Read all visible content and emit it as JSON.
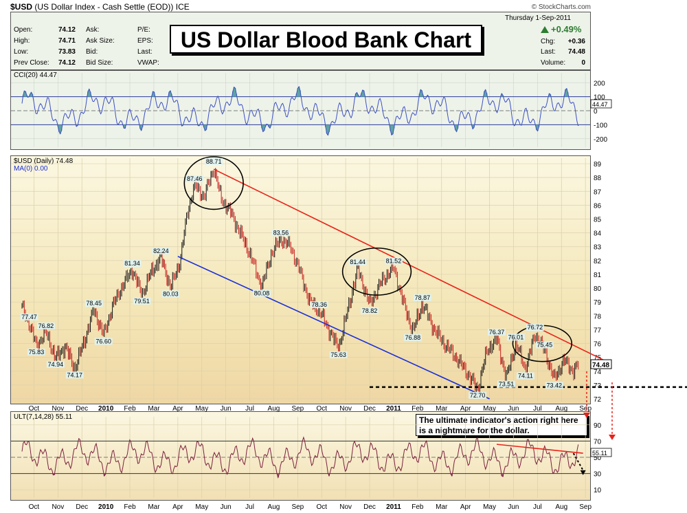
{
  "header": {
    "symbol": "$USD",
    "description": "(US Dollar Index - Cash Settle (EOD))",
    "exchange": "ICE",
    "source": "© StockCharts.com"
  },
  "quote": {
    "rows_left": [
      {
        "label": "Open:",
        "value": "74.12"
      },
      {
        "label": "High:",
        "value": "74.71"
      },
      {
        "label": "Low:",
        "value": "73.83"
      },
      {
        "label": "Prev Close:",
        "value": "74.12"
      }
    ],
    "rows_mid": [
      "Ask:",
      "Ask Size:",
      "Bid:",
      "Bid Size:"
    ],
    "rows_mid2": [
      "P/E:",
      "EPS:",
      "Last:",
      "VWAP:"
    ],
    "date": "Thursday  1-Sep-2011",
    "change_pct": "+0.49%",
    "chg_label": "Chg:",
    "chg_value": "+0.36",
    "last_label": "Last:",
    "last_value": "74.48",
    "volume_label": "Volume:",
    "volume_value": "0"
  },
  "banner": "US Dollar Blood Bank Chart",
  "cci": {
    "title": "CCI(20) 44.47",
    "current_label": "44.47",
    "axis": [
      "200",
      "100",
      "0",
      "-100",
      "-200"
    ],
    "axis_values": [
      200,
      100,
      0,
      -100,
      -200
    ],
    "range": [
      -260,
      270
    ],
    "line_color": "#3b4fc4",
    "fill_color": "#5fa3a3"
  },
  "main": {
    "title": "$USD (Daily) 74.48",
    "ma_label": "MA(0) 0.00",
    "current_label": "74.48",
    "axis": [
      "89",
      "88",
      "87",
      "86",
      "85",
      "84",
      "83",
      "82",
      "81",
      "80",
      "79",
      "78",
      "77",
      "76",
      "75",
      "74",
      "73",
      "72"
    ],
    "axis_values": [
      89,
      88,
      87,
      86,
      85,
      84,
      83,
      82,
      81,
      80,
      79,
      78,
      77,
      76,
      75,
      74,
      73,
      72
    ],
    "range": [
      71.8,
      89.4
    ],
    "resistance_color": "#e8231a",
    "support_color": "#1a2fd6"
  },
  "chart_data": {
    "type": "line",
    "title": "$USD (Daily) 74.48",
    "x_axis_months": [
      "Oct",
      "Nov",
      "Dec",
      "2010",
      "Feb",
      "Mar",
      "Apr",
      "May",
      "Jun",
      "Jul",
      "Aug",
      "Sep",
      "Oct",
      "Nov",
      "Dec",
      "2011",
      "Feb",
      "Mar",
      "Apr",
      "May",
      "Jun",
      "Jul",
      "Aug",
      "Sep"
    ],
    "series": [
      {
        "name": "$USD (Daily)",
        "points": [
          {
            "t": 0,
            "y": 78.6
          },
          {
            "t": 0.3,
            "y": 77.47
          },
          {
            "t": 0.6,
            "y": 75.83
          },
          {
            "t": 1.0,
            "y": 76.82
          },
          {
            "t": 1.4,
            "y": 74.94
          },
          {
            "t": 1.8,
            "y": 75.8
          },
          {
            "t": 2.2,
            "y": 74.17
          },
          {
            "t": 2.6,
            "y": 76.2
          },
          {
            "t": 3.0,
            "y": 78.45
          },
          {
            "t": 3.4,
            "y": 76.6
          },
          {
            "t": 3.8,
            "y": 78.8
          },
          {
            "t": 4.2,
            "y": 80.2
          },
          {
            "t": 4.6,
            "y": 81.34
          },
          {
            "t": 5.0,
            "y": 79.51
          },
          {
            "t": 5.4,
            "y": 81.2
          },
          {
            "t": 5.8,
            "y": 82.24
          },
          {
            "t": 6.2,
            "y": 80.03
          },
          {
            "t": 6.6,
            "y": 82.0
          },
          {
            "t": 6.9,
            "y": 85.5
          },
          {
            "t": 7.2,
            "y": 87.46
          },
          {
            "t": 7.6,
            "y": 86.6
          },
          {
            "t": 8.0,
            "y": 88.71
          },
          {
            "t": 8.3,
            "y": 86.5
          },
          {
            "t": 8.7,
            "y": 85.5
          },
          {
            "t": 9.1,
            "y": 84.0
          },
          {
            "t": 9.5,
            "y": 82.5
          },
          {
            "t": 10.0,
            "y": 80.08
          },
          {
            "t": 10.4,
            "y": 82.5
          },
          {
            "t": 10.8,
            "y": 83.56
          },
          {
            "t": 11.2,
            "y": 83.0
          },
          {
            "t": 11.6,
            "y": 81.2
          },
          {
            "t": 12.0,
            "y": 79.0
          },
          {
            "t": 12.4,
            "y": 78.36
          },
          {
            "t": 12.8,
            "y": 77.0
          },
          {
            "t": 13.2,
            "y": 75.63
          },
          {
            "t": 13.6,
            "y": 78.5
          },
          {
            "t": 14.0,
            "y": 81.44
          },
          {
            "t": 14.5,
            "y": 78.82
          },
          {
            "t": 15.0,
            "y": 80.5
          },
          {
            "t": 15.5,
            "y": 81.52
          },
          {
            "t": 15.9,
            "y": 79.0
          },
          {
            "t": 16.3,
            "y": 76.88
          },
          {
            "t": 16.7,
            "y": 78.87
          },
          {
            "t": 17.2,
            "y": 77.0
          },
          {
            "t": 17.6,
            "y": 76.0
          },
          {
            "t": 18.1,
            "y": 75.0
          },
          {
            "t": 18.6,
            "y": 73.8
          },
          {
            "t": 19.0,
            "y": 72.7
          },
          {
            "t": 19.4,
            "y": 75.5
          },
          {
            "t": 19.8,
            "y": 76.37
          },
          {
            "t": 20.2,
            "y": 73.51
          },
          {
            "t": 20.6,
            "y": 76.01
          },
          {
            "t": 21.0,
            "y": 74.11
          },
          {
            "t": 21.4,
            "y": 76.72
          },
          {
            "t": 21.8,
            "y": 75.45
          },
          {
            "t": 22.2,
            "y": 73.42
          },
          {
            "t": 22.6,
            "y": 74.8
          },
          {
            "t": 23.0,
            "y": 74.0
          },
          {
            "t": 23.2,
            "y": 74.48
          }
        ]
      }
    ],
    "annotations": [
      "88.71",
      "87.46",
      "83.56",
      "82.24",
      "81.34",
      "81.44",
      "81.52",
      "80.08",
      "80.03",
      "79.51",
      "78.87",
      "78.82",
      "78.45",
      "78.36",
      "77.47",
      "76.88",
      "76.82",
      "76.72",
      "76.60",
      "76.37",
      "76.01",
      "75.83",
      "75.63",
      "75.45",
      "74.94",
      "74.17",
      "74.11",
      "73.51",
      "73.42",
      "72.70"
    ],
    "ylim": [
      72,
      89
    ],
    "grid": true
  },
  "peaks": [
    {
      "text": "88.71",
      "t": 8.0,
      "y": 88.71,
      "pos": "above"
    },
    {
      "text": "87.46",
      "t": 7.2,
      "y": 87.46,
      "pos": "above"
    },
    {
      "text": "83.56",
      "t": 10.8,
      "y": 83.56,
      "pos": "above"
    },
    {
      "text": "82.24",
      "t": 5.8,
      "y": 82.24,
      "pos": "above"
    },
    {
      "text": "81.34",
      "t": 4.6,
      "y": 81.34,
      "pos": "above"
    },
    {
      "text": "81.44",
      "t": 14.0,
      "y": 81.44,
      "pos": "above"
    },
    {
      "text": "81.52",
      "t": 15.5,
      "y": 81.52,
      "pos": "above"
    },
    {
      "text": "80.08",
      "t": 10.0,
      "y": 80.08,
      "pos": "below"
    },
    {
      "text": "80.03",
      "t": 6.2,
      "y": 80.03,
      "pos": "below"
    },
    {
      "text": "79.51",
      "t": 5.0,
      "y": 79.51,
      "pos": "below"
    },
    {
      "text": "78.87",
      "t": 16.7,
      "y": 78.87,
      "pos": "above"
    },
    {
      "text": "78.82",
      "t": 14.5,
      "y": 78.82,
      "pos": "below"
    },
    {
      "text": "78.45",
      "t": 3.0,
      "y": 78.45,
      "pos": "above"
    },
    {
      "text": "78.36",
      "t": 12.4,
      "y": 78.36,
      "pos": "above"
    },
    {
      "text": "77.47",
      "t": 0.3,
      "y": 77.47,
      "pos": "above"
    },
    {
      "text": "76.88",
      "t": 16.3,
      "y": 76.88,
      "pos": "below"
    },
    {
      "text": "76.82",
      "t": 1.0,
      "y": 76.82,
      "pos": "above"
    },
    {
      "text": "76.72",
      "t": 21.4,
      "y": 76.72,
      "pos": "above"
    },
    {
      "text": "76.60",
      "t": 3.4,
      "y": 76.6,
      "pos": "below"
    },
    {
      "text": "76.37",
      "t": 19.8,
      "y": 76.37,
      "pos": "above"
    },
    {
      "text": "76.01",
      "t": 20.6,
      "y": 76.01,
      "pos": "above"
    },
    {
      "text": "75.83",
      "t": 0.6,
      "y": 75.83,
      "pos": "below"
    },
    {
      "text": "75.63",
      "t": 13.2,
      "y": 75.63,
      "pos": "below"
    },
    {
      "text": "75.45",
      "t": 21.8,
      "y": 75.45,
      "pos": "above"
    },
    {
      "text": "74.94",
      "t": 1.4,
      "y": 74.94,
      "pos": "below"
    },
    {
      "text": "74.17",
      "t": 2.2,
      "y": 74.17,
      "pos": "below"
    },
    {
      "text": "74.11",
      "t": 21.0,
      "y": 74.11,
      "pos": "below"
    },
    {
      "text": "73.51",
      "t": 20.2,
      "y": 73.51,
      "pos": "below"
    },
    {
      "text": "73.42",
      "t": 22.2,
      "y": 73.42,
      "pos": "below"
    },
    {
      "text": "72.70",
      "t": 19.0,
      "y": 72.7,
      "pos": "below"
    }
  ],
  "trendlines": {
    "resistance": {
      "t0": 8.0,
      "y0": 88.6,
      "t1": 24.5,
      "y1": 74.6
    },
    "support": {
      "t0": 6.5,
      "y0": 82.3,
      "t1": 19.5,
      "y1": 72.0
    },
    "horizontal": {
      "y": 72.85
    }
  },
  "ellipses": [
    {
      "t": 8.0,
      "y": 87.6,
      "rt": 1.0,
      "ry": 1.9
    },
    {
      "t": 14.8,
      "y": 81.2,
      "rt": 1.2,
      "ry": 1.7
    },
    {
      "t": 21.7,
      "y": 76.0,
      "rt": 1.0,
      "ry": 1.3
    }
  ],
  "ult": {
    "title": "ULT(7,14,28) 55.11",
    "current_label": "55.11",
    "axis": [
      "90",
      "70",
      "50",
      "30",
      "10"
    ],
    "axis_values": [
      90,
      70,
      50,
      30,
      10
    ],
    "range": [
      0,
      100
    ],
    "line_color": "#7a1f3d",
    "note": "The ultimate indicator's action right here is a nightmare  for the dollar."
  },
  "month_ticks": [
    "Oct",
    "Nov",
    "Dec",
    "2010",
    "Feb",
    "Mar",
    "Apr",
    "May",
    "Jun",
    "Jul",
    "Aug",
    "Sep",
    "Oct",
    "Nov",
    "Dec",
    "2011",
    "Feb",
    "Mar",
    "Apr",
    "May",
    "Jun",
    "Jul",
    "Aug",
    "Sep"
  ],
  "month_bold": [
    3,
    15
  ]
}
